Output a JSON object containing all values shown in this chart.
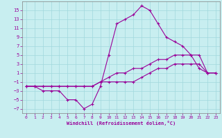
{
  "xlabel": "Windchill (Refroidissement éolien,°C)",
  "bg_color": "#c8eef0",
  "grid_color": "#a0d8dc",
  "line_color": "#990099",
  "xlim": [
    -0.5,
    23.5
  ],
  "ylim": [
    -8,
    17
  ],
  "xticks": [
    0,
    1,
    2,
    3,
    4,
    5,
    6,
    7,
    8,
    9,
    10,
    11,
    12,
    13,
    14,
    15,
    16,
    17,
    18,
    19,
    20,
    21,
    22,
    23
  ],
  "yticks": [
    -7,
    -5,
    -3,
    -1,
    1,
    3,
    5,
    7,
    9,
    11,
    13,
    15
  ],
  "line1_x": [
    0,
    1,
    2,
    3,
    4,
    5,
    6,
    7,
    8,
    9,
    10,
    11,
    12,
    13,
    14,
    15,
    16,
    17,
    18,
    19,
    20,
    21,
    22,
    23
  ],
  "line1_y": [
    -2,
    -2,
    -3,
    -3,
    -3,
    -5,
    -5,
    -7,
    -6,
    -2,
    5,
    12,
    13,
    14,
    16,
    15,
    12,
    9,
    8,
    7,
    5,
    2,
    1,
    1
  ],
  "line2_x": [
    0,
    1,
    2,
    3,
    4,
    5,
    6,
    7,
    8,
    9,
    10,
    11,
    12,
    13,
    14,
    15,
    16,
    17,
    18,
    19,
    20,
    21,
    22,
    23
  ],
  "line2_y": [
    -2,
    -2,
    -2,
    -2,
    -2,
    -2,
    -2,
    -2,
    -2,
    -1,
    0,
    1,
    1,
    2,
    2,
    3,
    4,
    4,
    5,
    5,
    5,
    5,
    1,
    1
  ],
  "line3_x": [
    0,
    1,
    2,
    3,
    4,
    5,
    6,
    7,
    8,
    9,
    10,
    11,
    12,
    13,
    14,
    15,
    16,
    17,
    18,
    19,
    20,
    21,
    22,
    23
  ],
  "line3_y": [
    -2,
    -2,
    -2,
    -2,
    -2,
    -2,
    -2,
    -2,
    -2,
    -1,
    -1,
    -1,
    -1,
    -1,
    0,
    1,
    2,
    2,
    3,
    3,
    3,
    3,
    1,
    1
  ]
}
